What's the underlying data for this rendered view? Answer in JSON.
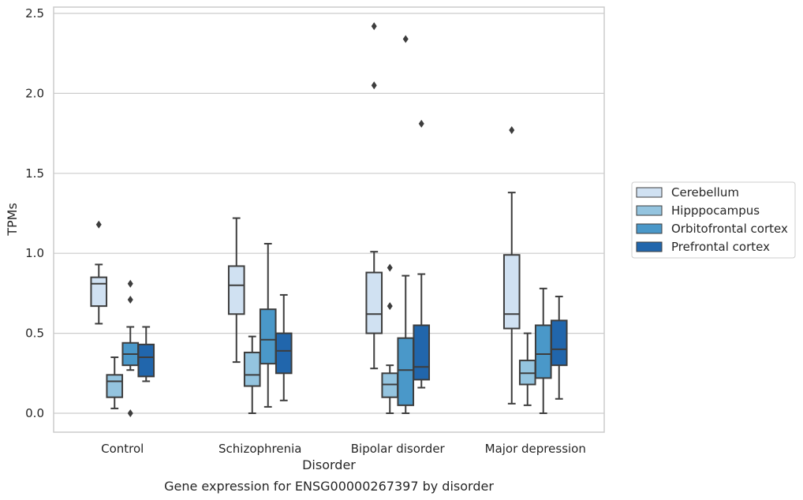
{
  "chart_data": {
    "type": "box",
    "title": "Gene expression for ENSG00000267397 by disorder",
    "xlabel": "Disorder",
    "ylabel": "TPMs",
    "ylim": [
      -0.12,
      2.55
    ],
    "yticks": [
      0.0,
      0.5,
      1.0,
      1.5,
      2.0,
      2.5
    ],
    "ytick_labels": [
      "0.0",
      "0.5",
      "1.0",
      "1.5",
      "2.0",
      "2.5"
    ],
    "grid": "horizontal",
    "legend_position": "right",
    "categories": [
      "Control",
      "Schizophrenia",
      "Bipolar disorder",
      "Major depression"
    ],
    "series": [
      {
        "name": "Cerebellum",
        "color": "#d0e1f2",
        "boxes": [
          {
            "whislo": 0.56,
            "q1": 0.67,
            "med": 0.81,
            "q3": 0.85,
            "whishi": 0.93,
            "fliers": [
              1.18
            ]
          },
          {
            "whislo": 0.32,
            "q1": 0.62,
            "med": 0.8,
            "q3": 0.92,
            "whishi": 1.22,
            "fliers": []
          },
          {
            "whislo": 0.28,
            "q1": 0.5,
            "med": 0.62,
            "q3": 0.88,
            "whishi": 1.01,
            "fliers": [
              2.05,
              2.42
            ]
          },
          {
            "whislo": 0.06,
            "q1": 0.53,
            "med": 0.62,
            "q3": 0.99,
            "whishi": 1.38,
            "fliers": [
              1.77
            ]
          }
        ]
      },
      {
        "name": "Hipppocampus",
        "color": "#94c4df",
        "boxes": [
          {
            "whislo": 0.03,
            "q1": 0.1,
            "med": 0.2,
            "q3": 0.24,
            "whishi": 0.35,
            "fliers": []
          },
          {
            "whislo": 0.0,
            "q1": 0.17,
            "med": 0.24,
            "q3": 0.38,
            "whishi": 0.48,
            "fliers": []
          },
          {
            "whislo": 0.0,
            "q1": 0.1,
            "med": 0.18,
            "q3": 0.25,
            "whishi": 0.3,
            "fliers": [
              0.67,
              0.91
            ]
          },
          {
            "whislo": 0.05,
            "q1": 0.18,
            "med": 0.25,
            "q3": 0.33,
            "whishi": 0.5,
            "fliers": []
          }
        ]
      },
      {
        "name": "Orbitofrontal cortex",
        "color": "#4a98c9",
        "boxes": [
          {
            "whislo": 0.27,
            "q1": 0.3,
            "med": 0.37,
            "q3": 0.44,
            "whishi": 0.54,
            "fliers": [
              0.71,
              0.81,
              0.0
            ]
          },
          {
            "whislo": 0.04,
            "q1": 0.31,
            "med": 0.46,
            "q3": 0.65,
            "whishi": 1.06,
            "fliers": []
          },
          {
            "whislo": 0.0,
            "q1": 0.05,
            "med": 0.27,
            "q3": 0.47,
            "whishi": 0.86,
            "fliers": [
              2.34
            ]
          },
          {
            "whislo": 0.0,
            "q1": 0.22,
            "med": 0.37,
            "q3": 0.55,
            "whishi": 0.78,
            "fliers": []
          }
        ]
      },
      {
        "name": "Prefrontal cortex",
        "color": "#2166ac",
        "boxes": [
          {
            "whislo": 0.2,
            "q1": 0.23,
            "med": 0.35,
            "q3": 0.43,
            "whishi": 0.54,
            "fliers": []
          },
          {
            "whislo": 0.08,
            "q1": 0.25,
            "med": 0.39,
            "q3": 0.5,
            "whishi": 0.74,
            "fliers": []
          },
          {
            "whislo": 0.16,
            "q1": 0.21,
            "med": 0.29,
            "q3": 0.55,
            "whishi": 0.87,
            "fliers": [
              1.81
            ]
          },
          {
            "whislo": 0.09,
            "q1": 0.3,
            "med": 0.4,
            "q3": 0.58,
            "whishi": 0.73,
            "fliers": []
          }
        ]
      }
    ]
  }
}
